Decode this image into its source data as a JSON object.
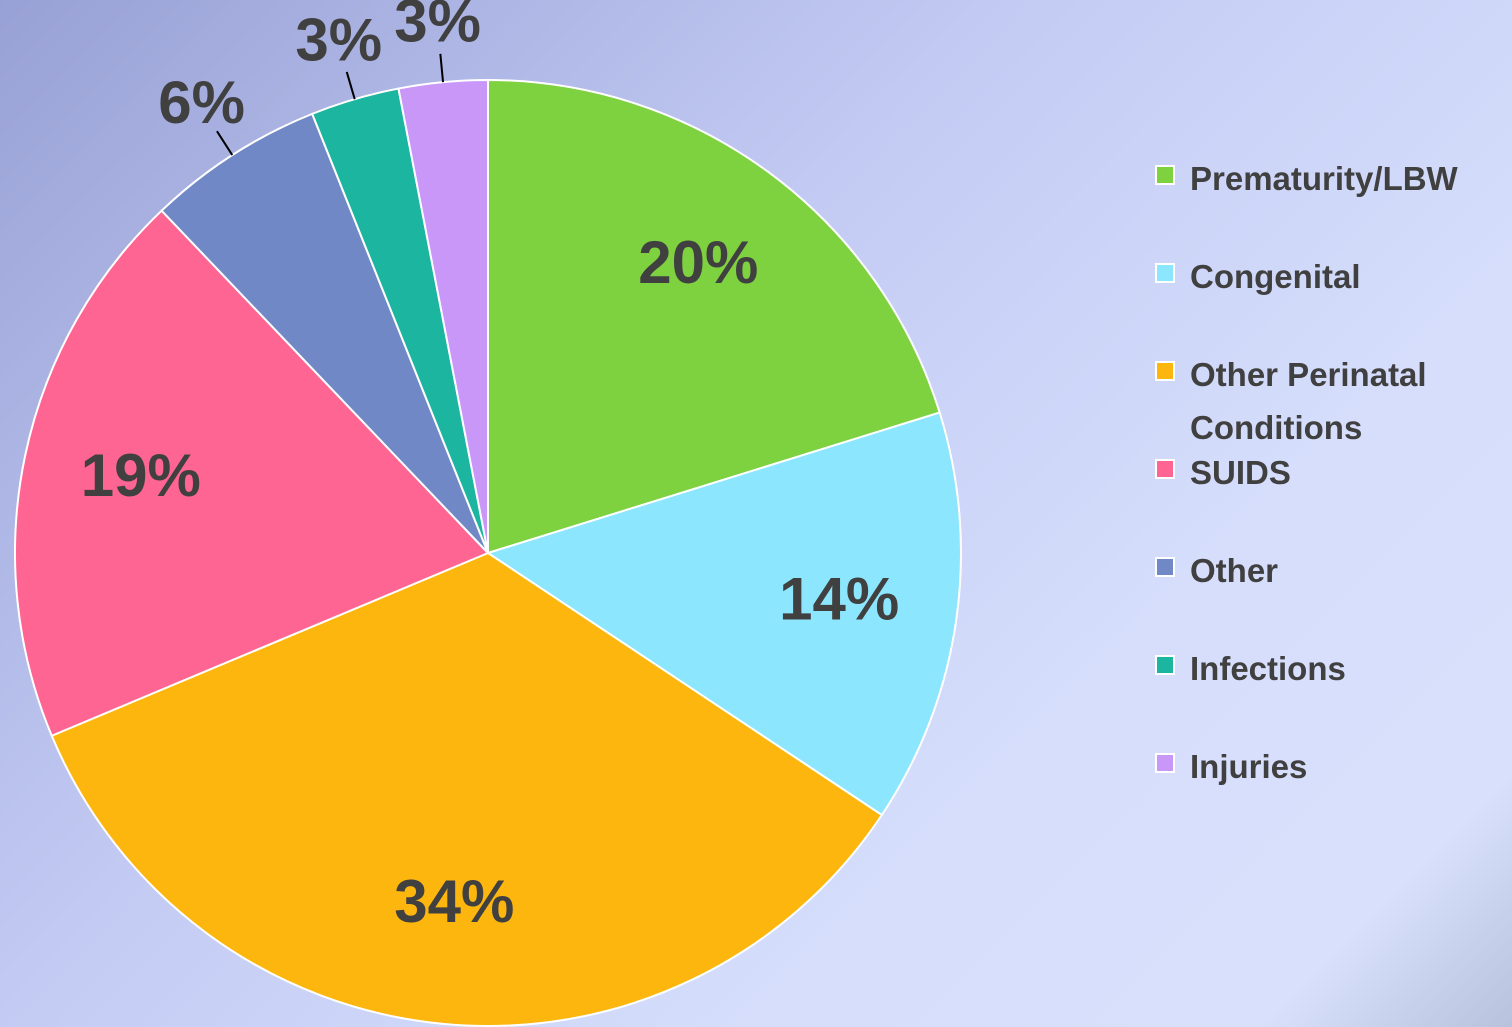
{
  "chart_data": {
    "type": "pie",
    "categories": [
      "Prematurity/LBW",
      "Congenital",
      "Other Perinatal Conditions",
      "SUIDS",
      "Other",
      "Infections",
      "Injuries"
    ],
    "values": [
      20,
      14,
      34,
      19,
      6,
      3,
      3
    ],
    "value_labels": [
      "20%",
      "14%",
      "34%",
      "19%",
      "6%",
      "3%",
      "3%"
    ],
    "colors": [
      "#7ed13f",
      "#8ce6fd",
      "#fdb60d",
      "#fe6593",
      "#7089c6",
      "#1cb5a0",
      "#c897f8"
    ],
    "legend": "right"
  }
}
